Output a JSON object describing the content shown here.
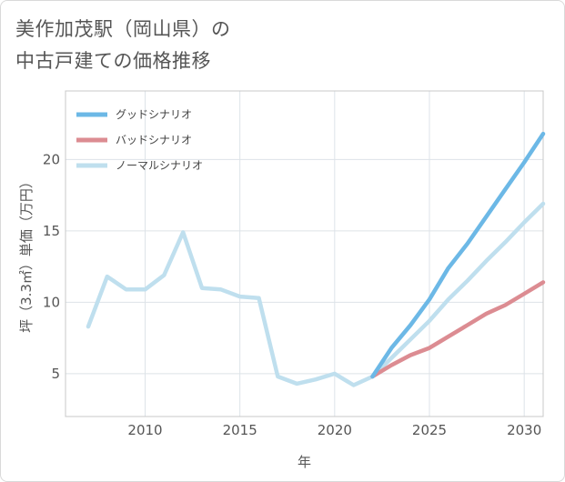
{
  "title_lines": [
    "美作加茂駅（岡山県）の",
    "中古戸建ての価格推移"
  ],
  "chart_data": {
    "type": "line",
    "title": "美作加茂駅（岡山県）の中古戸建ての価格推移",
    "xlabel": "年",
    "ylabel": "坪（3.3㎡）単価（万円）",
    "xlim": [
      2005.8,
      2031
    ],
    "ylim": [
      2.0,
      24.8
    ],
    "xticks": [
      2010,
      2015,
      2020,
      2025,
      2030
    ],
    "yticks": [
      5,
      10,
      15,
      20
    ],
    "grid": true,
    "legend_position": "top-left",
    "series": [
      {
        "name": "グッドシナリオ",
        "color": "#6cb8e6",
        "x": [
          2022,
          2023,
          2024,
          2025,
          2026,
          2027,
          2028,
          2029,
          2030,
          2031
        ],
        "values": [
          4.8,
          6.8,
          8.4,
          10.2,
          12.4,
          14.1,
          16.0,
          17.9,
          19.8,
          21.8
        ]
      },
      {
        "name": "バッドシナリオ",
        "color": "#dc8c92",
        "x": [
          2022,
          2023,
          2024,
          2025,
          2026,
          2027,
          2028,
          2029,
          2030,
          2031
        ],
        "values": [
          4.8,
          5.6,
          6.3,
          6.8,
          7.6,
          8.4,
          9.2,
          9.8,
          10.6,
          11.4
        ]
      },
      {
        "name": "ノーマルシナリオ",
        "color": "#bfdfee",
        "x": [
          2007,
          2008,
          2009,
          2010,
          2011,
          2012,
          2013,
          2014,
          2015,
          2016,
          2017,
          2018,
          2019,
          2020,
          2021,
          2022,
          2023,
          2024,
          2025,
          2026,
          2027,
          2028,
          2029,
          2030,
          2031
        ],
        "values": [
          8.3,
          11.8,
          10.9,
          10.9,
          11.9,
          14.9,
          11.0,
          10.9,
          10.4,
          10.3,
          4.8,
          4.3,
          4.6,
          5.0,
          4.2,
          4.8,
          6.1,
          7.4,
          8.7,
          10.2,
          11.5,
          12.9,
          14.2,
          15.6,
          16.9
        ]
      }
    ]
  }
}
